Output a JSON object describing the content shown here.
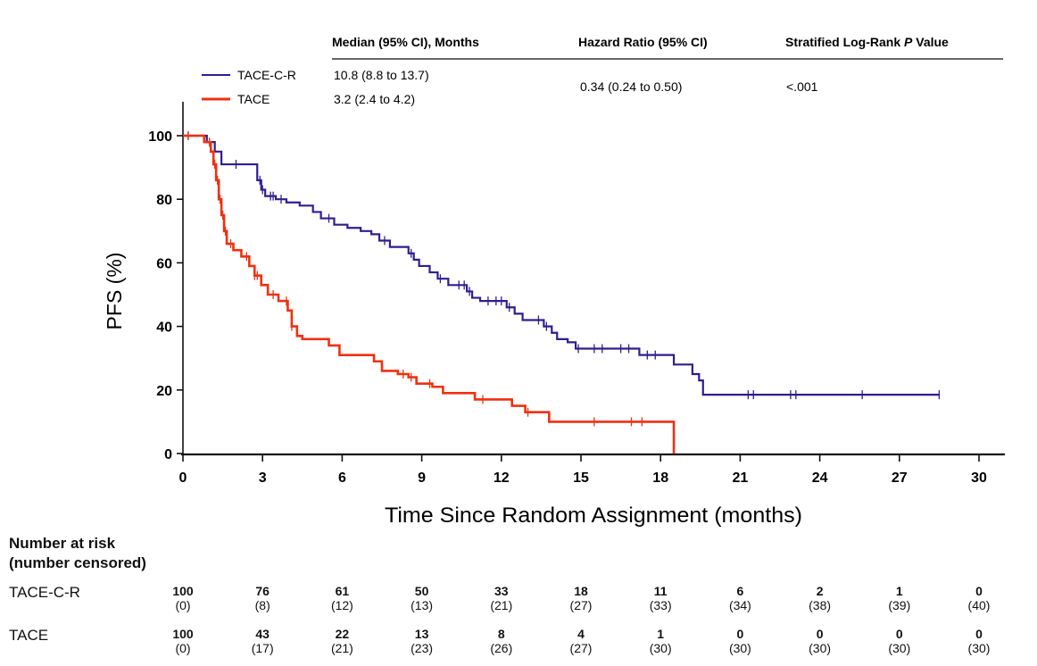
{
  "table_header": {
    "median": "Median (95% CI), Months",
    "hazard": "Hazard Ratio (95% CI)",
    "pvalue_prefix": "Stratified Log-Rank ",
    "pvalue_italic": "P",
    "pvalue_suffix": " Value"
  },
  "table_rows": [
    {
      "label": "TACE-C-R",
      "median": "10.8 (8.8 to 13.7)"
    },
    {
      "label": "TACE",
      "median": "3.2 (2.4 to 4.2)"
    }
  ],
  "hazard_value": "0.34 (0.24 to 0.50)",
  "p_value": "<.001",
  "colors": {
    "tace_c_r": "#2e1f8f",
    "tace": "#f03010",
    "axis": "#111111"
  },
  "risk_table": {
    "title_line1": "Number at risk",
    "title_line2": "(number censored)",
    "rows": [
      {
        "label": "TACE-C-R",
        "at_risk": [
          "100",
          "76",
          "61",
          "50",
          "33",
          "18",
          "11",
          "6",
          "2",
          "1",
          "0"
        ],
        "censored": [
          "(0)",
          "(8)",
          "(12)",
          "(13)",
          "(21)",
          "(27)",
          "(33)",
          "(34)",
          "(38)",
          "(39)",
          "(40)"
        ]
      },
      {
        "label": "TACE",
        "at_risk": [
          "100",
          "43",
          "22",
          "13",
          "8",
          "4",
          "1",
          "0",
          "0",
          "0",
          "0"
        ],
        "censored": [
          "(0)",
          "(17)",
          "(21)",
          "(23)",
          "(26)",
          "(27)",
          "(30)",
          "(30)",
          "(30)",
          "(30)",
          "(30)"
        ]
      }
    ]
  },
  "chart_data": {
    "type": "line",
    "subtype": "kaplan-meier step",
    "title": "",
    "xlabel": "Time Since Random Assignment (months)",
    "ylabel": "PFS (%)",
    "xlim": [
      0,
      30
    ],
    "ylim": [
      0,
      100
    ],
    "xticks": [
      0,
      3,
      6,
      9,
      12,
      15,
      18,
      21,
      24,
      27,
      30
    ],
    "yticks": [
      0,
      20,
      40,
      60,
      80,
      100
    ],
    "grid": false,
    "legend": "top-left",
    "series": [
      {
        "name": "TACE-C-R",
        "color": "#2e1f8f",
        "steps": [
          [
            0,
            100
          ],
          [
            0.9,
            98
          ],
          [
            1.2,
            95
          ],
          [
            1.45,
            91
          ],
          [
            2.8,
            86
          ],
          [
            2.95,
            83
          ],
          [
            3.1,
            81
          ],
          [
            3.5,
            80
          ],
          [
            3.9,
            79
          ],
          [
            4.4,
            78
          ],
          [
            4.9,
            76
          ],
          [
            5.2,
            74
          ],
          [
            5.7,
            72
          ],
          [
            6.2,
            71
          ],
          [
            6.7,
            70
          ],
          [
            7.1,
            69
          ],
          [
            7.4,
            67
          ],
          [
            7.8,
            65
          ],
          [
            8.5,
            63
          ],
          [
            8.7,
            61
          ],
          [
            8.9,
            59
          ],
          [
            9.3,
            57
          ],
          [
            9.6,
            55
          ],
          [
            10.0,
            53
          ],
          [
            10.7,
            51
          ],
          [
            10.9,
            49
          ],
          [
            11.2,
            48
          ],
          [
            12.2,
            46
          ],
          [
            12.5,
            44
          ],
          [
            12.8,
            42
          ],
          [
            13.6,
            40
          ],
          [
            13.9,
            38
          ],
          [
            14.1,
            36
          ],
          [
            14.5,
            35
          ],
          [
            14.8,
            33
          ],
          [
            17.2,
            31
          ],
          [
            18.5,
            28
          ],
          [
            19.2,
            25
          ],
          [
            19.45,
            23
          ],
          [
            19.6,
            18.5
          ]
        ],
        "end": 28.5,
        "censor_x": [
          0.2,
          2.0,
          2.9,
          3.0,
          3.3,
          3.4,
          3.7,
          5.5,
          7.6,
          8.6,
          9.7,
          10.4,
          10.6,
          10.8,
          11.5,
          11.8,
          12.0,
          12.3,
          13.4,
          13.7,
          14.9,
          15.5,
          15.8,
          16.5,
          16.8,
          17.5,
          17.8,
          21.3,
          21.5,
          22.9,
          23.1,
          25.6,
          28.5
        ]
      },
      {
        "name": "TACE",
        "color": "#f03010",
        "steps": [
          [
            0,
            100
          ],
          [
            0.8,
            98
          ],
          [
            1.05,
            95
          ],
          [
            1.15,
            91
          ],
          [
            1.25,
            86
          ],
          [
            1.35,
            80
          ],
          [
            1.45,
            75
          ],
          [
            1.55,
            70
          ],
          [
            1.65,
            66
          ],
          [
            1.9,
            64
          ],
          [
            2.2,
            62
          ],
          [
            2.5,
            59
          ],
          [
            2.7,
            56
          ],
          [
            2.95,
            53
          ],
          [
            3.2,
            50
          ],
          [
            3.6,
            48
          ],
          [
            3.95,
            45
          ],
          [
            4.1,
            40
          ],
          [
            4.3,
            37
          ],
          [
            4.5,
            36
          ],
          [
            5.5,
            34
          ],
          [
            5.9,
            31
          ],
          [
            7.2,
            29
          ],
          [
            7.5,
            26
          ],
          [
            8.1,
            25
          ],
          [
            8.5,
            24
          ],
          [
            8.8,
            22
          ],
          [
            9.4,
            21
          ],
          [
            9.8,
            19
          ],
          [
            11.0,
            17
          ],
          [
            12.4,
            15
          ],
          [
            12.9,
            13
          ],
          [
            13.8,
            10
          ]
        ],
        "end": 18.5,
        "drop_to_zero_at": 18.5,
        "censor_x": [
          0.2,
          1.0,
          1.2,
          1.3,
          1.4,
          1.5,
          1.6,
          1.8,
          2.4,
          2.7,
          2.8,
          3.4,
          3.9,
          4.1,
          8.3,
          8.6,
          9.3,
          11.3,
          13.0,
          15.5,
          16.9,
          17.3
        ]
      }
    ]
  }
}
